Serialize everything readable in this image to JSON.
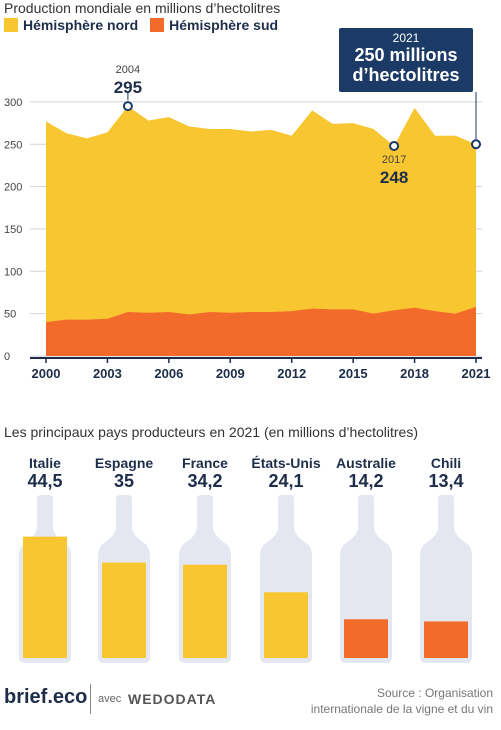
{
  "header": {
    "title": "Production mondiale en millions d’hectolitres",
    "legend": [
      {
        "label": "Hémisphère nord",
        "color": "#f8c630"
      },
      {
        "label": "Hémisphère sud",
        "color": "#f26b2b"
      }
    ]
  },
  "callout": {
    "year": "2021",
    "line1": "250 millions",
    "line2": "d’hectolitres"
  },
  "annotations": [
    {
      "year": "2004",
      "value": "295"
    },
    {
      "year": "2017",
      "value": "248"
    }
  ],
  "chart_data": [
    {
      "type": "area",
      "title": "Production mondiale en millions d’hectolitres",
      "x": [
        2000,
        2001,
        2002,
        2003,
        2004,
        2005,
        2006,
        2007,
        2008,
        2009,
        2010,
        2011,
        2012,
        2013,
        2014,
        2015,
        2016,
        2017,
        2018,
        2019,
        2020,
        2021
      ],
      "series": [
        {
          "name": "Hémisphère sud",
          "values": [
            40,
            43,
            43,
            44,
            52,
            51,
            52,
            49,
            52,
            51,
            52,
            52,
            53,
            56,
            55,
            55,
            50,
            54,
            57,
            53,
            50,
            58
          ]
        },
        {
          "name": "Hémisphère nord",
          "values": [
            237,
            220,
            214,
            220,
            243,
            227,
            230,
            222,
            216,
            217,
            213,
            215,
            207,
            234,
            219,
            220,
            218,
            194,
            236,
            207,
            210,
            192
          ]
        }
      ],
      "totals": [
        277,
        263,
        257,
        264,
        295,
        278,
        282,
        271,
        268,
        268,
        265,
        267,
        260,
        290,
        274,
        275,
        268,
        248,
        293,
        260,
        260,
        250
      ],
      "stacked": true,
      "xticks": [
        "2000",
        "2003",
        "2006",
        "2009",
        "2012",
        "2015",
        "2018",
        "2021"
      ],
      "yticks": [
        "0",
        "50",
        "100",
        "150",
        "200",
        "250",
        "300"
      ],
      "ylim": [
        0,
        310
      ],
      "grid": true,
      "colors": {
        "nord": "#f8c630",
        "sud": "#f26b2b",
        "axis": "#1e2d4a",
        "marker": "#1b3a66"
      }
    },
    {
      "type": "bar",
      "title": "Les principaux pays producteurs en 2021 (en millions d’hectolitres)",
      "categories": [
        "Italie",
        "Espagne",
        "France",
        "États-Unis",
        "Australie",
        "Chili"
      ],
      "values": [
        44.5,
        35,
        34.2,
        24.1,
        14.2,
        13.4
      ],
      "labels": [
        "44,5",
        "35",
        "34,2",
        "24,1",
        "14,2",
        "13,4"
      ],
      "ylim": [
        0,
        55
      ],
      "colors": {
        "north": "#f8c630",
        "south": "#f26b2b",
        "bottle": "#e4e7ef"
      },
      "hemisphere": [
        "nord",
        "nord",
        "nord",
        "nord",
        "sud",
        "sud"
      ]
    }
  ],
  "footer": {
    "logo": "brief.eco",
    "avec": "avec",
    "partner": "WEDODATA",
    "source_line1": "Source : Organisation",
    "source_line2": "internationale de la vigne et du vin"
  }
}
